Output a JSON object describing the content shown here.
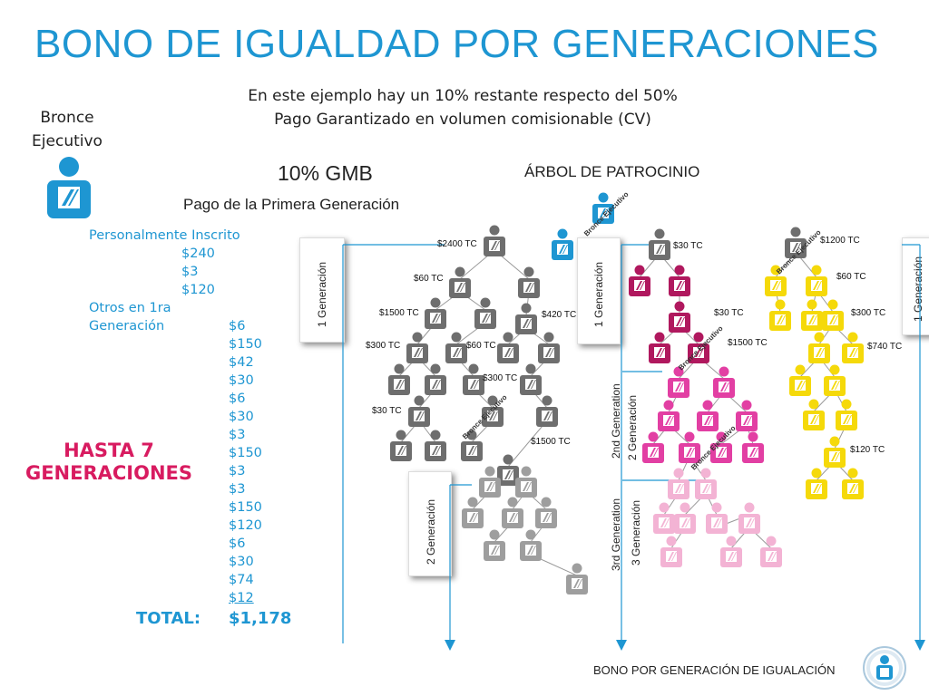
{
  "title": "BONO DE IGUALDAD POR GENERACIONES",
  "subtitle": {
    "line1": "En este ejemplo hay un 10% restante respecto del 50%",
    "line2": "Pago Garantizado en volumen comisionable (CV)"
  },
  "rank": {
    "line1": "Bronce",
    "line2": "Ejecutivo"
  },
  "gmb_label": "10% GMB",
  "first_gen_label": "Pago de la Primera Generación",
  "tree_title": "ÁRBOL DE PATROCINIO",
  "payments": {
    "personal_label": "Personalmente Inscrito",
    "personal_values": [
      "$240",
      "$3",
      "$120"
    ],
    "others_label_1": "Otros en 1ra",
    "others_label_2": "Generación",
    "others_values": [
      "$6",
      "$150",
      "$42",
      "$30",
      "$6",
      "$30",
      "$3",
      "$150",
      "$3",
      "$3",
      "$150",
      "$120",
      "$6",
      "$30",
      "$74",
      "$12"
    ]
  },
  "hasta": {
    "line1": "HASTA 7",
    "line2": "GENERACIONES"
  },
  "total": {
    "label": "TOTAL:",
    "value": "$1,178"
  },
  "gen_labels": {
    "gen1": "1 Generación",
    "gen2": "2 Generación",
    "gen3": "3 Generación",
    "gen2nd": "2nd Generation",
    "gen3rd": "3rd Generation"
  },
  "bronce_label": "Bronce Ejecutivo",
  "tc": {
    "gray": [
      "$2400 TC",
      "$60 TC",
      "$1500 TC",
      "$420 TC",
      "$300 TC",
      "$60 TC",
      "$300 TC",
      "$30 TC",
      "$1500 TC"
    ],
    "pink": [
      "$30 TC",
      "$30 TC",
      "$1500 TC"
    ],
    "yellow": [
      "$1200 TC",
      "$60 TC",
      "$300 TC",
      "$740 TC",
      "$120 TC"
    ]
  },
  "footer": "BONO POR GENERACIÓN DE IGUALACIÓN",
  "colors": {
    "title": "#1e96d2",
    "accent": "#d81b60",
    "gray": "#6e6e6e",
    "gray_light": "#9e9e9e",
    "magenta": "#b0185e",
    "pink": "#e23fa3",
    "pink_light": "#f3b3d4",
    "yellow": "#f5d90a",
    "blue_person": "#1e96d2",
    "arrow": "#1e96d2"
  }
}
